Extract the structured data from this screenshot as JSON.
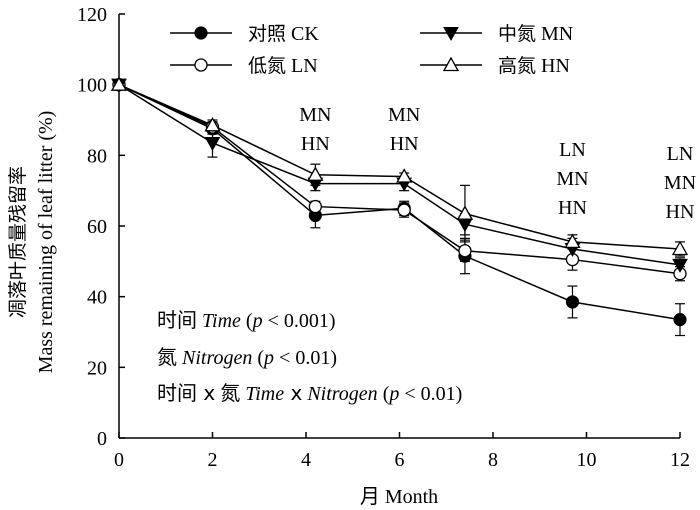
{
  "chart_data": {
    "type": "line",
    "xlabel_cn": "月",
    "xlabel_en": "Month",
    "ylabel_cn": "凋落叶质量残留率",
    "ylabel_en": "Mass remaining of leaf litter (%)",
    "xlim": [
      0,
      12
    ],
    "ylim": [
      0,
      120
    ],
    "x_ticks": [
      0,
      2,
      4,
      6,
      8,
      10,
      12
    ],
    "y_ticks": [
      0,
      20,
      40,
      60,
      80,
      100,
      120
    ],
    "grid": false,
    "legend_position": "top",
    "series": [
      {
        "name_cn": "对照",
        "name_en": "CK",
        "marker": "filled-circle",
        "x": [
          0,
          2,
          4.2,
          6.1,
          7.4,
          9.7,
          12
        ],
        "y": [
          100,
          87.5,
          63,
          65,
          51.5,
          38.5,
          33.5
        ],
        "err": [
          0,
          1.5,
          3.5,
          2,
          5,
          4.5,
          4.5
        ]
      },
      {
        "name_cn": "低氮",
        "name_en": "LN",
        "marker": "open-circle",
        "x": [
          0,
          2,
          4.2,
          6.1,
          7.4,
          9.7,
          12
        ],
        "y": [
          100,
          88,
          65.5,
          64.5,
          53,
          50.5,
          46.5
        ],
        "err": [
          0,
          1.5,
          1.5,
          2,
          3,
          3,
          2
        ]
      },
      {
        "name_cn": "中氮",
        "name_en": "MN",
        "marker": "filled-triangle-down",
        "x": [
          0,
          2,
          4.2,
          6.1,
          7.4,
          9.7,
          12
        ],
        "y": [
          100,
          83.5,
          72,
          72,
          60.5,
          53.5,
          49
        ],
        "err": [
          0,
          4,
          2,
          2,
          3,
          3,
          2
        ]
      },
      {
        "name_cn": "高氮",
        "name_en": "HN",
        "marker": "open-triangle-up",
        "x": [
          0,
          2,
          4.2,
          6.1,
          7.4,
          9.7,
          12
        ],
        "y": [
          100,
          88.5,
          74.5,
          74,
          63.5,
          55.5,
          53.5
        ],
        "err": [
          0,
          1.5,
          3,
          1,
          8,
          2,
          2
        ]
      }
    ],
    "annotations": [
      {
        "x": 4.2,
        "lines": [
          "MN",
          "HN"
        ]
      },
      {
        "x": 6.1,
        "lines": [
          "MN",
          "HN"
        ]
      },
      {
        "x": 9.7,
        "lines": [
          "LN",
          "MN",
          "HN"
        ]
      },
      {
        "x": 12,
        "lines": [
          "LN",
          "MN",
          "HN"
        ]
      }
    ],
    "stats": [
      {
        "cn": "时间",
        "en": "Time",
        "p": "p",
        "rest": " < 0.001)"
      },
      {
        "cn": "氮",
        "en": "Nitrogen",
        "p": "p",
        "rest": " < 0.01)"
      },
      {
        "cn_a": "时间",
        "x1": "x",
        "cn_b": "氮",
        "en_a": "Time",
        "x2": "x",
        "en_b": "Nitrogen",
        "p": "p",
        "rest": " < 0.01)"
      }
    ]
  }
}
